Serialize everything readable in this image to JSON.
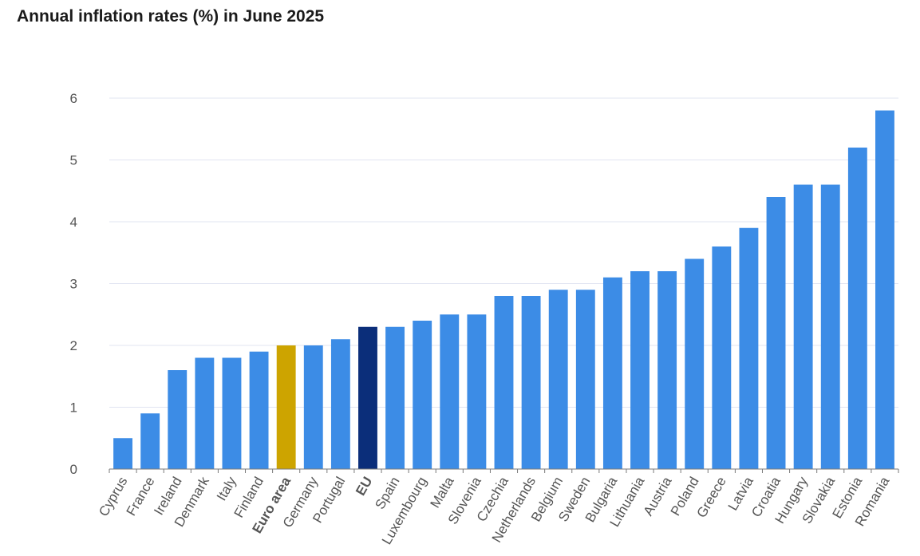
{
  "chart_data": {
    "type": "bar",
    "title": "Annual inflation rates (%) in June 2025",
    "xlabel": "",
    "ylabel": "",
    "ylim": [
      0,
      6
    ],
    "yticks": [
      0,
      1,
      2,
      3,
      4,
      5,
      6
    ],
    "grid": true,
    "categories": [
      "Cyprus",
      "France",
      "Ireland",
      "Denmark",
      "Italy",
      "Finland",
      "Euro area",
      "Germany",
      "Portugal",
      "EU",
      "Spain",
      "Luxembourg",
      "Malta",
      "Slovenia",
      "Czechia",
      "Netherlands",
      "Belgium",
      "Sweden",
      "Bulgaria",
      "Lithuania",
      "Austria",
      "Poland",
      "Greece",
      "Latvia",
      "Croatia",
      "Hungary",
      "Slovakia",
      "Estonia",
      "Romania"
    ],
    "values": [
      0.5,
      0.9,
      1.6,
      1.8,
      1.8,
      1.9,
      2.0,
      2.0,
      2.1,
      2.3,
      2.3,
      2.4,
      2.5,
      2.5,
      2.8,
      2.8,
      2.9,
      2.9,
      3.1,
      3.2,
      3.2,
      3.4,
      3.6,
      3.9,
      4.4,
      4.6,
      4.6,
      5.2,
      5.8
    ],
    "colors": {
      "default": "#3c8ce6",
      "Euro area": "#cda400",
      "EU": "#0b2e7a",
      "grid": "#e1e4f2",
      "axis": "#7a7a7a"
    },
    "bold_categories": [
      "Euro area",
      "EU"
    ]
  }
}
